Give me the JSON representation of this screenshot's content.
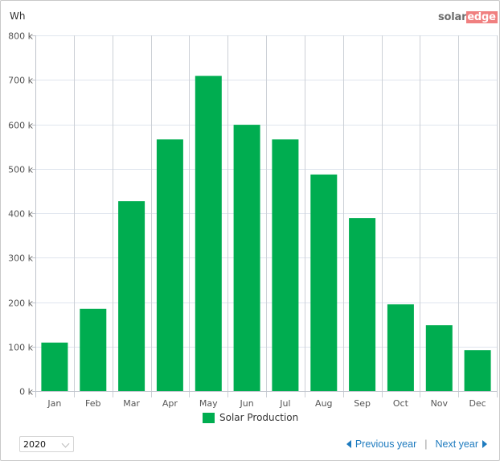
{
  "header": {
    "unit_label": "Wh",
    "logo": {
      "part1": "solar",
      "part2": "edge"
    }
  },
  "colors": {
    "bar": "#00ad50",
    "logo_accent": "#f08080",
    "link": "#1e7bbf"
  },
  "chart_data": {
    "type": "bar",
    "title": "",
    "xlabel": "",
    "ylabel": "Wh",
    "categories": [
      "Jan",
      "Feb",
      "Mar",
      "Apr",
      "May",
      "Jun",
      "Jul",
      "Aug",
      "Sep",
      "Oct",
      "Nov",
      "Dec"
    ],
    "series": [
      {
        "name": "Solar Production",
        "color": "#00ad50",
        "values": [
          109000,
          185000,
          427000,
          566000,
          709000,
          599000,
          566000,
          487000,
          389000,
          195000,
          148000,
          92000
        ]
      }
    ],
    "ylim": [
      0,
      800000
    ],
    "yticks": [
      0,
      100000,
      200000,
      300000,
      400000,
      500000,
      600000,
      700000,
      800000
    ],
    "ytick_labels": [
      "0 k",
      "100 k",
      "200 k",
      "300 k",
      "400 k",
      "500 k",
      "600 k",
      "700 k",
      "800 k"
    ],
    "grid": true,
    "legend_position": "bottom-center"
  },
  "legend": {
    "label": "Solar Production"
  },
  "controls": {
    "year_select": {
      "value": "2020"
    },
    "previous_label": "Previous year",
    "separator": "|",
    "next_label": "Next year"
  }
}
